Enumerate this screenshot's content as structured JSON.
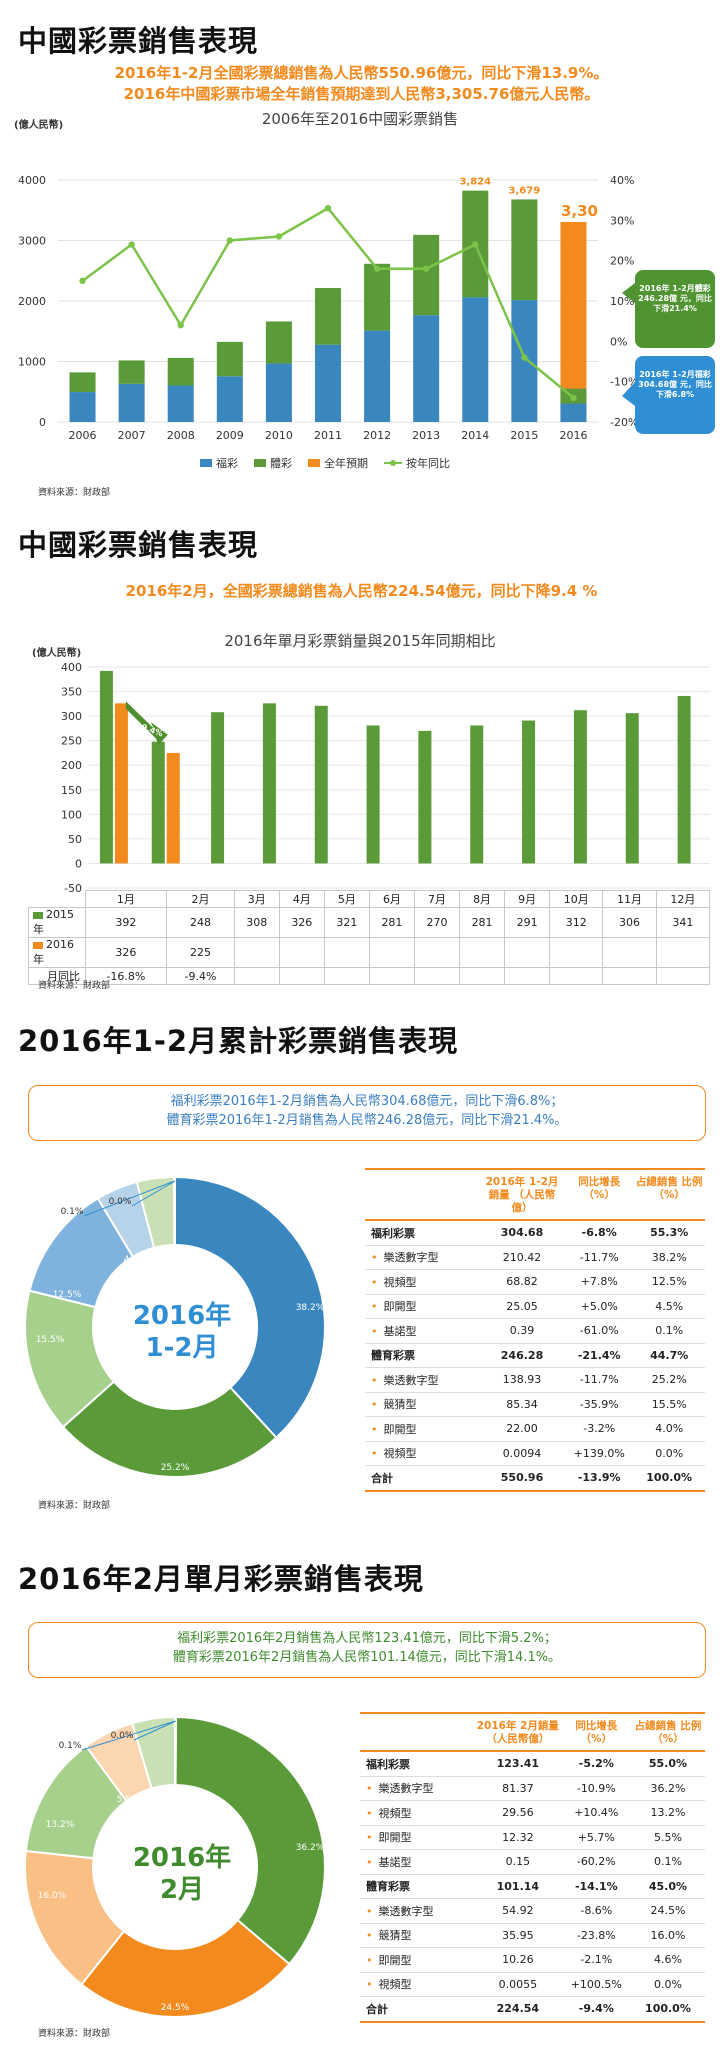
{
  "section1": {
    "heading": "中國彩票銷售表現",
    "lines": [
      "2016年1-2月全國彩票總銷售為人民幣550.96億元，同比下滑13.9%。",
      "2016年中國彩票市場全年銷售預期達到人民幣3,305.76億元人民幣。"
    ],
    "source": "資料來源：財政部",
    "callout_green": "2016年 1-2月體彩 246.28億 元，同比 下滑21.4%",
    "callout_blue": "2016年 1-2月福彩 304.68億 元，同比 下滑6.8%"
  },
  "section2": {
    "heading": "中國彩票銷售表現",
    "line": "2016年2月，全國彩票總銷售為人民幣224.54億元，同比下降9.4 %",
    "source": "資料來源：財政部",
    "arrow_label": "-9.4%"
  },
  "section3": {
    "heading": "2016年1-2月累計彩票銷售表現",
    "summary": [
      "福利彩票2016年1-2月銷售為人民幣304.68億元，同比下滑6.8%；",
      "體育彩票2016年1-2月銷售為人民幣246.28億元，同比下滑21.4%。"
    ],
    "donut_center": [
      "2016年",
      "1-2月"
    ],
    "source": "資料來源：財政部",
    "table": {
      "headers": [
        "",
        "2016年 1-2月銷量 （人民幣億）",
        "同比增長 （%）",
        "占總銷售 比例 （%）"
      ],
      "rows": [
        {
          "type": "cat",
          "label": "福利彩票",
          "v": "304.68",
          "g": "-6.8%",
          "s": "55.3%"
        },
        {
          "type": "sub",
          "label": "樂透數字型",
          "v": "210.42",
          "g": "-11.7%",
          "s": "38.2%"
        },
        {
          "type": "sub",
          "label": "視頻型",
          "v": "68.82",
          "g": "+7.8%",
          "s": "12.5%"
        },
        {
          "type": "sub",
          "label": "即開型",
          "v": "25.05",
          "g": "+5.0%",
          "s": "4.5%"
        },
        {
          "type": "sub",
          "label": "基諾型",
          "v": "0.39",
          "g": "-61.0%",
          "s": "0.1%"
        },
        {
          "type": "cat",
          "label": "體育彩票",
          "v": "246.28",
          "g": "-21.4%",
          "s": "44.7%"
        },
        {
          "type": "sub",
          "label": "樂透數字型",
          "v": "138.93",
          "g": "-11.7%",
          "s": "25.2%"
        },
        {
          "type": "sub",
          "label": "競猜型",
          "v": "85.34",
          "g": "-35.9%",
          "s": "15.5%"
        },
        {
          "type": "sub",
          "label": "即開型",
          "v": "22.00",
          "g": "-3.2%",
          "s": "4.0%"
        },
        {
          "type": "sub",
          "label": "視頻型",
          "v": "0.0094",
          "g": "+139.0%",
          "s": "0.0%"
        },
        {
          "type": "total",
          "label": "合計",
          "v": "550.96",
          "g": "-13.9%",
          "s": "100.0%"
        }
      ]
    }
  },
  "section4": {
    "heading": "2016年2月單月彩票銷售表現",
    "summary": [
      "福利彩票2016年2月銷售為人民幣123.41億元，同比下滑5.2%；",
      "體育彩票2016年2月銷售為人民幣101.14億元，同比下滑14.1%。"
    ],
    "donut_center": [
      "2016年",
      "2月"
    ],
    "source": "資料來源：財政部",
    "table": {
      "headers": [
        "",
        "2016年 2月銷量 （人民幣億）",
        "同比增長 （%）",
        "占總銷售 比例 （%）"
      ],
      "rows": [
        {
          "type": "cat",
          "label": "福利彩票",
          "v": "123.41",
          "g": "-5.2%",
          "s": "55.0%"
        },
        {
          "type": "sub",
          "label": "樂透數字型",
          "v": "81.37",
          "g": "-10.9%",
          "s": "36.2%"
        },
        {
          "type": "sub",
          "label": "視頻型",
          "v": "29.56",
          "g": "+10.4%",
          "s": "13.2%"
        },
        {
          "type": "sub",
          "label": "即開型",
          "v": "12.32",
          "g": "+5.7%",
          "s": "5.5%"
        },
        {
          "type": "sub",
          "label": "基諾型",
          "v": "0.15",
          "g": "-60.2%",
          "s": "0.1%"
        },
        {
          "type": "cat",
          "label": "體育彩票",
          "v": "101.14",
          "g": "-14.1%",
          "s": "45.0%"
        },
        {
          "type": "sub",
          "label": "樂透數字型",
          "v": "54.92",
          "g": "-8.6%",
          "s": "24.5%"
        },
        {
          "type": "sub",
          "label": "競猜型",
          "v": "35.95",
          "g": "-23.8%",
          "s": "16.0%"
        },
        {
          "type": "sub",
          "label": "即開型",
          "v": "10.26",
          "g": "-2.1%",
          "s": "4.6%"
        },
        {
          "type": "sub",
          "label": "視頻型",
          "v": "0.0055",
          "g": "+100.5%",
          "s": "0.0%"
        },
        {
          "type": "total",
          "label": "合計",
          "v": "224.54",
          "g": "-9.4%",
          "s": "100.0%"
        }
      ]
    }
  },
  "colors": {
    "blue": "#3a87c0",
    "green": "#5a9a38",
    "orange": "#f28a1e",
    "line_green": "#7cc34a"
  },
  "chart_data": [
    {
      "type": "bar",
      "title": "2006年至2016中國彩票銷售",
      "ylabel": "(億人民幣)",
      "ylim": [
        0,
        4000
      ],
      "y2lim": [
        -20,
        40
      ],
      "yticks": [
        "0",
        "1000",
        "2000",
        "3000",
        "4000"
      ],
      "y2ticks": [
        "-20%",
        "-10%",
        "0%",
        "10%",
        "20%",
        "30%",
        "40%"
      ],
      "categories": [
        "2006",
        "2007",
        "2008",
        "2009",
        "2010",
        "2011",
        "2012",
        "2013",
        "2014",
        "2015",
        "2016"
      ],
      "series": [
        {
          "name": "福彩",
          "values": [
            495,
            631,
            604,
            756,
            968,
            1278,
            1510,
            1765,
            2060,
            2015,
            305
          ]
        },
        {
          "name": "體彩",
          "values": [
            325,
            387,
            456,
            569,
            694,
            937,
            1105,
            1328,
            1764,
            1664,
            246
          ]
        },
        {
          "name": "全年預期",
          "values": [
            0,
            0,
            0,
            0,
            0,
            0,
            0,
            0,
            0,
            0,
            2755
          ]
        },
        {
          "name": "按年同比",
          "values": [
            15,
            24,
            4,
            25,
            26,
            33,
            18,
            18,
            24,
            -4,
            -14
          ]
        }
      ],
      "data_labels": [
        "3,824",
        "3,679",
        "3,30"
      ],
      "legend": "bottom"
    },
    {
      "type": "bar",
      "title": "2016年單月彩票銷量與2015年同期相比",
      "ylabel": "(億人民幣)",
      "ylim": [
        -50,
        400
      ],
      "yticks": [
        "-50",
        "0",
        "50",
        "100",
        "150",
        "200",
        "250",
        "300",
        "350",
        "400"
      ],
      "categories": [
        "1月",
        "2月",
        "3月",
        "4月",
        "5月",
        "6月",
        "7月",
        "8月",
        "9月",
        "10月",
        "11月",
        "12月"
      ],
      "series": [
        {
          "name": "2015年",
          "values": [
            392,
            248,
            308,
            326,
            321,
            281,
            270,
            281,
            291,
            312,
            306,
            341
          ]
        },
        {
          "name": "2016年",
          "values": [
            326,
            225,
            null,
            null,
            null,
            null,
            null,
            null,
            null,
            null,
            null,
            null
          ]
        }
      ],
      "table_rows": [
        {
          "name": "2015年",
          "cells": [
            "392",
            "248",
            "308",
            "326",
            "321",
            "281",
            "270",
            "281",
            "291",
            "312",
            "306",
            "341"
          ]
        },
        {
          "name": "2016年",
          "cells": [
            "326",
            "225",
            "",
            "",
            "",
            "",
            "",
            "",
            "",
            "",
            "",
            ""
          ]
        },
        {
          "name": "月同比",
          "cells": [
            "-16.8%",
            "-9.4%",
            "",
            "",
            "",
            "",
            "",
            "",
            "",
            "",
            "",
            ""
          ]
        }
      ]
    },
    {
      "type": "pie",
      "labels": [
        "樂透數字型(福彩)",
        "視頻型(福彩)",
        "即開型(福彩)",
        "基諾型(福彩)",
        "樂透數字型(體彩)",
        "競猜型(體彩)",
        "即開型(體彩)",
        "視頻型(體彩)"
      ],
      "values": [
        38.2,
        12.5,
        4.5,
        0.1,
        25.2,
        15.5,
        4.0,
        0.0
      ],
      "order": [
        "38.2%",
        "25.2%",
        "15.5%",
        "12.5%",
        "4.5%",
        "4.0%",
        "0.1%",
        "0.0%"
      ]
    },
    {
      "type": "pie",
      "labels": [
        "樂透數字型(福彩)",
        "視頻型(福彩)",
        "即開型(福彩)",
        "基諾型(福彩)",
        "樂透數字型(體彩)",
        "競猜型(體彩)",
        "即開型(體彩)",
        "視頻型(體彩)"
      ],
      "values": [
        36.2,
        13.2,
        5.5,
        0.1,
        24.5,
        16.0,
        4.6,
        0.0
      ],
      "order": [
        "36.2%",
        "24.5%",
        "16.0%",
        "13.2%",
        "5.5%",
        "4.6%",
        "0.1%",
        "0.0%"
      ]
    }
  ]
}
